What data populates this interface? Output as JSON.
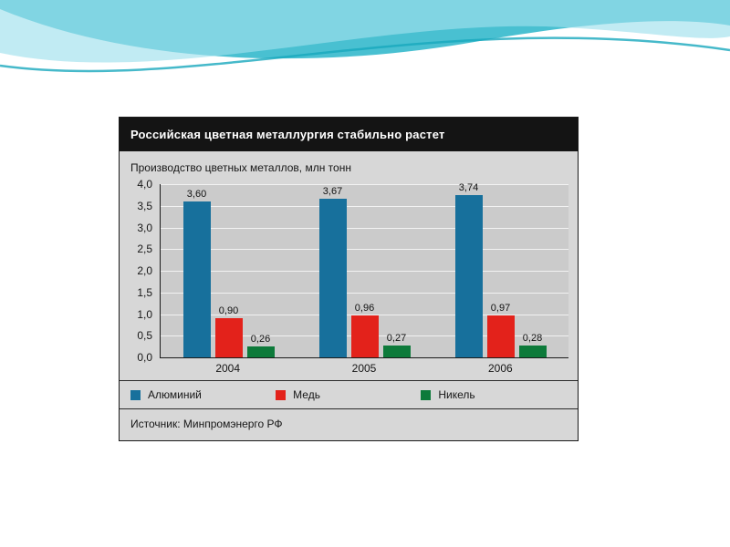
{
  "chart_data": {
    "type": "bar",
    "title": "Российская цветная металлургия стабильно растет",
    "subtitle": "Производство цветных металлов, млн тонн",
    "categories": [
      "2004",
      "2005",
      "2006"
    ],
    "series": [
      {
        "name": "Алюминий",
        "color": "#17709c",
        "values": [
          3.6,
          3.67,
          3.74
        ],
        "labels": [
          "3,60",
          "3,67",
          "3,74"
        ]
      },
      {
        "name": "Медь",
        "color": "#e3221b",
        "values": [
          0.9,
          0.96,
          0.97
        ],
        "labels": [
          "0,90",
          "0,96",
          "0,97"
        ]
      },
      {
        "name": "Никель",
        "color": "#0d7a3a",
        "values": [
          0.26,
          0.27,
          0.28
        ],
        "labels": [
          "0,26",
          "0,27",
          "0,28"
        ]
      }
    ],
    "ylim": [
      0,
      4.0
    ],
    "ytick_step": 0.5,
    "yticks": [
      "4,0",
      "3,5",
      "3,0",
      "2,5",
      "2,0",
      "1,5",
      "1,0",
      "0,5",
      "0,0"
    ],
    "grid": true,
    "legend_position": "bottom",
    "source": "Источник: Минпромэнерго РФ"
  },
  "decor": {
    "wave_colors": {
      "band_main": "#35b9cc",
      "band_light": "#9fe0ec",
      "line": "#18a7bd"
    }
  }
}
